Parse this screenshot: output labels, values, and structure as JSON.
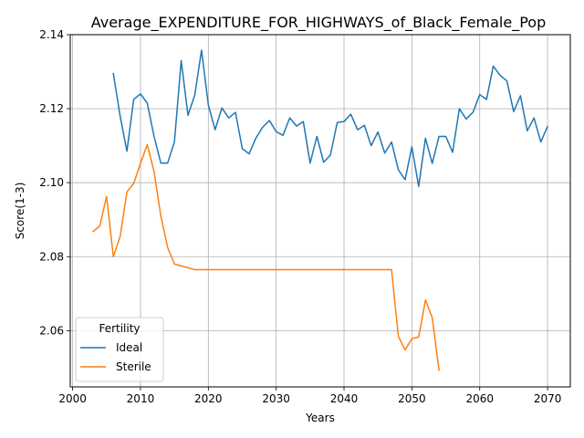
{
  "chart_data": {
    "type": "line",
    "title": "Average_EXPENDITURE_FOR_HIGHWAYS_of_Black_Female_Pop",
    "xlabel": "Years",
    "ylabel": "Score(1-3)",
    "xlim": [
      1999.65,
      2073.35
    ],
    "ylim": [
      2.0448,
      2.14
    ],
    "xticks": [
      2000,
      2010,
      2020,
      2030,
      2040,
      2050,
      2060,
      2070
    ],
    "yticks": [
      2.06,
      2.08,
      2.1,
      2.12,
      2.14
    ],
    "xtick_labels": [
      "2000",
      "2010",
      "2020",
      "2030",
      "2040",
      "2050",
      "2060",
      "2070"
    ],
    "ytick_labels": [
      "2.06",
      "2.08",
      "2.10",
      "2.12",
      "2.14"
    ],
    "grid": true,
    "legend": {
      "title": "Fertility",
      "placement": "lower-left"
    },
    "series": [
      {
        "name": "Ideal",
        "color": "#1f77b4",
        "x": [
          2006,
          2007,
          2008,
          2009,
          2010,
          2011,
          2012,
          2013,
          2014,
          2015,
          2016,
          2017,
          2018,
          2019,
          2020,
          2021,
          2022,
          2023,
          2024,
          2025,
          2026,
          2027,
          2028,
          2029,
          2030,
          2031,
          2032,
          2033,
          2034,
          2035,
          2036,
          2037,
          2038,
          2039,
          2040,
          2041,
          2042,
          2043,
          2044,
          2045,
          2046,
          2047,
          2048,
          2049,
          2050,
          2051,
          2052,
          2053,
          2054,
          2055,
          2056,
          2057,
          2058,
          2059,
          2060,
          2061,
          2062,
          2063,
          2064,
          2065,
          2066,
          2067,
          2068,
          2069,
          2070
        ],
        "values": [
          2.1295,
          2.118,
          2.1085,
          2.1225,
          2.124,
          2.1215,
          2.1125,
          2.1053,
          2.1053,
          2.111,
          2.133,
          2.1182,
          2.1237,
          2.1358,
          2.121,
          2.1143,
          2.1202,
          2.1175,
          2.119,
          2.1092,
          2.1078,
          2.112,
          2.115,
          2.1168,
          2.1138,
          2.1128,
          2.1175,
          2.1153,
          2.1165,
          2.1053,
          2.1125,
          2.1055,
          2.1075,
          2.1163,
          2.1165,
          2.1185,
          2.1143,
          2.1155,
          2.11,
          2.1137,
          2.108,
          2.111,
          2.1035,
          2.1008,
          2.1097,
          2.099,
          2.112,
          2.1052,
          2.1125,
          2.1125,
          2.1082,
          2.12,
          2.1172,
          2.119,
          2.1238,
          2.1225,
          2.1315,
          2.129,
          2.1275,
          2.1192,
          2.1235,
          2.114,
          2.1175,
          2.111,
          2.1152
        ]
      },
      {
        "name": "Sterile",
        "color": "#ff7f0e",
        "x": [
          2003,
          2004,
          2005,
          2006,
          2007,
          2008,
          2009,
          2010,
          2011,
          2012,
          2013,
          2014,
          2015,
          2016,
          2017,
          2018,
          2019,
          2020,
          2021,
          2022,
          2023,
          2024,
          2025,
          2026,
          2027,
          2028,
          2029,
          2030,
          2031,
          2032,
          2033,
          2034,
          2035,
          2036,
          2037,
          2038,
          2039,
          2040,
          2041,
          2042,
          2043,
          2044,
          2045,
          2046,
          2047,
          2048,
          2049,
          2050,
          2051,
          2052,
          2053,
          2054
        ],
        "values": [
          2.0868,
          2.0883,
          2.0963,
          2.08,
          2.0855,
          2.0975,
          2.0998,
          2.1052,
          2.1103,
          2.103,
          2.091,
          2.0825,
          2.078,
          2.0775,
          2.077,
          2.0765,
          2.0765,
          2.0765,
          2.0765,
          2.0765,
          2.0765,
          2.0765,
          2.0765,
          2.0765,
          2.0765,
          2.0765,
          2.0765,
          2.0765,
          2.0765,
          2.0765,
          2.0765,
          2.0765,
          2.0765,
          2.0765,
          2.0765,
          2.0765,
          2.0765,
          2.0765,
          2.0765,
          2.0765,
          2.0765,
          2.0765,
          2.0765,
          2.0765,
          2.0765,
          2.0585,
          2.0548,
          2.0578,
          2.0583,
          2.0683,
          2.0635,
          2.0493
        ]
      }
    ]
  }
}
